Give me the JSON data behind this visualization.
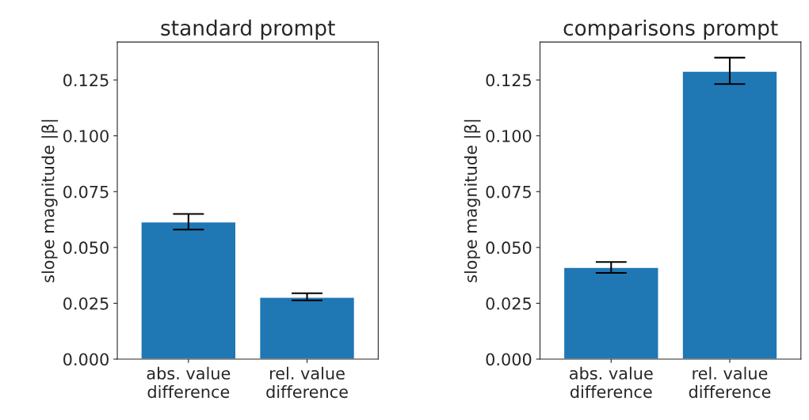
{
  "chart_data": [
    {
      "type": "bar",
      "title": "standard prompt",
      "ylabel": "slope magnitude |β|",
      "categories": [
        "abs. value\ndifference",
        "rel. value\ndifference"
      ],
      "values": [
        0.0614,
        0.0277
      ],
      "color": "#1f77b4",
      "errors": [
        [
          0.058,
          0.065
        ],
        [
          0.0263,
          0.0295
        ]
      ],
      "ylim": [
        0,
        0.142
      ],
      "yticks": [
        {
          "value": 0,
          "label": "0.000"
        },
        0.025,
        {
          "value": 0.05,
          "label": "0.050"
        },
        0.075,
        {
          "value": 0.1,
          "label": "0.100"
        },
        0.125
      ],
      "grid": false
    },
    {
      "type": "bar",
      "title": "comparisons prompt",
      "ylabel": "slope magnitude |β|",
      "categories": [
        "abs. value\ndifference",
        "rel. value\ndifference"
      ],
      "values": [
        0.0411,
        0.1289
      ],
      "color": "#1f77b4",
      "errors": [
        [
          0.0386,
          0.0435
        ],
        [
          0.1232,
          0.135
        ]
      ],
      "ylim": [
        0,
        0.142
      ],
      "yticks": [
        {
          "value": 0,
          "label": "0.000"
        },
        0.025,
        {
          "value": 0.05,
          "label": "0.050"
        },
        0.075,
        {
          "value": 0.1,
          "label": "0.100"
        },
        0.125
      ],
      "grid": false
    }
  ]
}
